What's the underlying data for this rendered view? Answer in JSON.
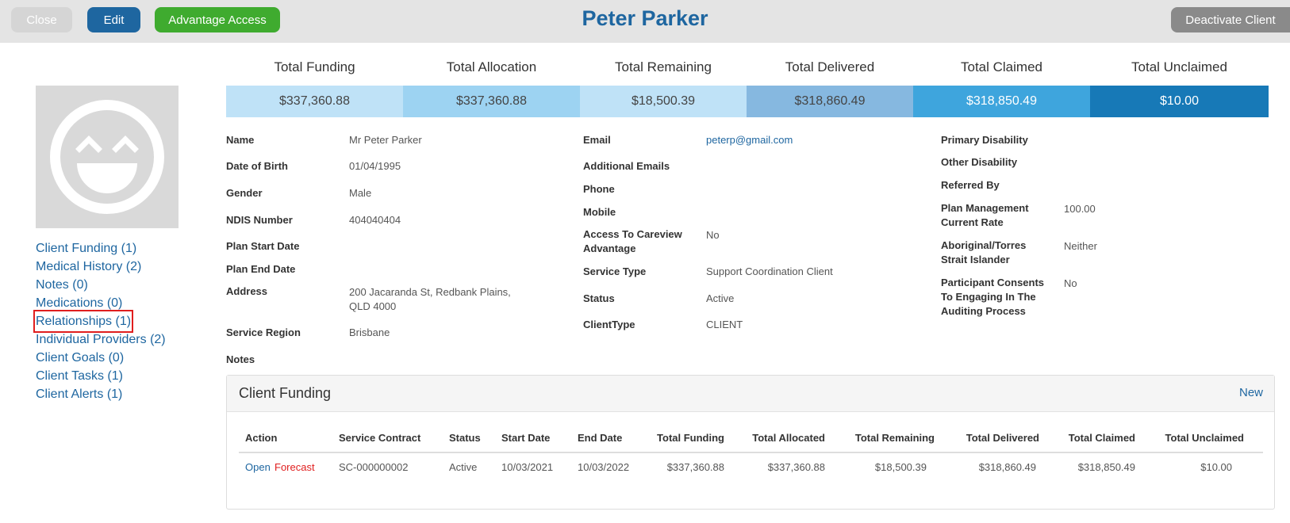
{
  "header": {
    "close_label": "Close",
    "edit_label": "Edit",
    "advantage_label": "Advantage Access",
    "title": "Peter Parker",
    "deactivate_label": "Deactivate Client"
  },
  "totals": [
    {
      "label": "Total Funding",
      "value": "$337,360.88",
      "color": "#bfe2f7"
    },
    {
      "label": "Total Allocation",
      "value": "$337,360.88",
      "color": "#9dd3f2"
    },
    {
      "label": "Total Remaining",
      "value": "$18,500.39",
      "color": "#bfe2f7"
    },
    {
      "label": "Total Delivered",
      "value": "$318,860.49",
      "color": "#86b8e0"
    },
    {
      "label": "Total Claimed",
      "value": "$318,850.49",
      "color": "#3ea5dd"
    },
    {
      "label": "Total Unclaimed",
      "value": "$10.00",
      "color": "#1779b7"
    }
  ],
  "avatar": {
    "icon": "smiley-face-icon"
  },
  "nav": [
    "Client Funding (1)",
    "Medical History (2)",
    "Notes (0)",
    "Medications (0)",
    "Relationships (1)",
    "Individual Providers (2)",
    "Client Goals (0)",
    "Client Tasks (1)",
    "Client Alerts (1)"
  ],
  "col1": {
    "name_label": "Name",
    "name": "Mr Peter Parker",
    "dob_label": "Date of Birth",
    "dob": "01/04/1995",
    "gender_label": "Gender",
    "gender": "Male",
    "ndis_label": "NDIS Number",
    "ndis": "404040404",
    "plan_start_label": "Plan Start Date",
    "plan_end_label": "Plan End Date",
    "address_label": "Address",
    "address_line1": "200 Jacaranda St, Redbank Plains,",
    "address_line2": "QLD 4000",
    "region_label": "Service Region",
    "region": "Brisbane",
    "notes_label": "Notes"
  },
  "col2": {
    "email_label": "Email",
    "email": "peterp@gmail.com",
    "add_emails_label": "Additional Emails",
    "phone_label": "Phone",
    "mobile_label": "Mobile",
    "access_label_1": "Access To Careview",
    "access_label_2": "Advantage",
    "access": "No",
    "service_type_label": "Service Type",
    "service_type": "Support Coordination Client",
    "status_label": "Status",
    "status": "Active",
    "client_type_label": "ClientType",
    "client_type": "CLIENT"
  },
  "col3": {
    "primary_label": "Primary Disability",
    "other_label": "Other Disability",
    "referred_label": "Referred By",
    "plan_mgmt_label_1": "Plan Management",
    "plan_mgmt_label_2": "Current Rate",
    "plan_mgmt": "100.00",
    "aboriginal_label_1": "Aboriginal/Torres",
    "aboriginal_label_2": "Strait Islander",
    "aboriginal": "Neither",
    "consent_label_1": "Participant Consents",
    "consent_label_2": "To Engaging In The",
    "consent_label_3": "Auditing Process",
    "consent": "No"
  },
  "funding": {
    "title": "Client Funding",
    "new_label": "New",
    "headers": [
      "Action",
      "Service Contract",
      "Status",
      "Start Date",
      "End Date",
      "Total Funding",
      "Total Allocated",
      "Total Remaining",
      "Total Delivered",
      "Total Claimed",
      "Total Unclaimed"
    ],
    "row": {
      "open": "Open",
      "forecast": "Forecast",
      "contract": "SC-000000002",
      "status": "Active",
      "start": "10/03/2021",
      "end": "10/03/2022",
      "funding": "$337,360.88",
      "allocated": "$337,360.88",
      "remaining": "$18,500.39",
      "delivered": "$318,860.49",
      "claimed": "$318,850.49",
      "unclaimed": "$10.00"
    }
  }
}
